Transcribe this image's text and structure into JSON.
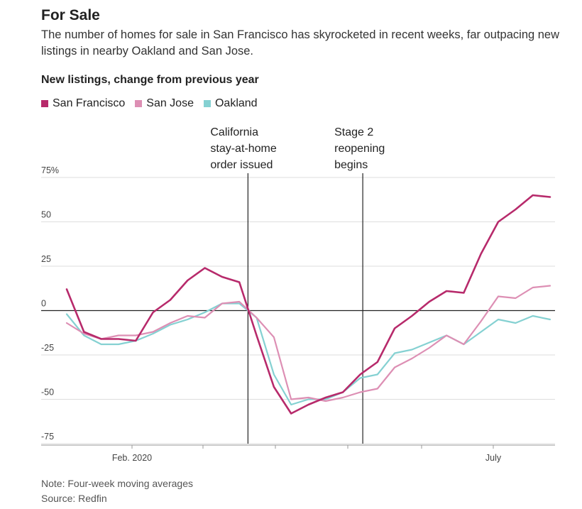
{
  "header": {
    "title": "For Sale",
    "dek": "The number of homes for sale in San Francisco has skyrocketed in recent weeks, far outpacing new listings in nearby Oakland and San Jose."
  },
  "chart_data": {
    "type": "line",
    "title": "New listings, change from previous year",
    "ylabel": "",
    "xlabel": "",
    "ylim": [
      -75,
      75
    ],
    "yticks": [
      75,
      50,
      25,
      0,
      -25,
      -50,
      -75
    ],
    "ytick_labels": [
      "75%",
      "50",
      "25",
      "0",
      "-25",
      "-50",
      "-75"
    ],
    "xtick_labels": [
      "Feb. 2020",
      "July"
    ],
    "grid": true,
    "legend_placement": "top-left",
    "x": [
      0,
      1,
      2,
      3,
      4,
      5,
      6,
      7,
      8,
      9,
      10,
      11,
      12,
      13,
      14,
      15,
      16,
      17,
      18,
      19,
      20,
      21,
      22,
      23,
      24,
      25,
      26,
      27,
      28
    ],
    "series": [
      {
        "name": "San Francisco",
        "color": "#b72a6b",
        "values": [
          12,
          -12,
          -16,
          -16,
          -17,
          -1,
          6,
          17,
          24,
          19,
          16,
          -14,
          -43,
          -58,
          -53,
          -49,
          -46,
          -36,
          -29,
          -10,
          -3,
          5,
          11,
          10,
          32,
          50,
          57,
          65,
          64
        ]
      },
      {
        "name": "San Jose",
        "color": "#dd8fb4",
        "values": [
          -7,
          -13,
          -16,
          -14,
          -14,
          -12,
          -7,
          -3,
          -4,
          4,
          5,
          -4,
          -15,
          -50,
          -49,
          -51,
          -49,
          -46,
          -44,
          -32,
          -27,
          -21,
          -14,
          -19,
          -6,
          8,
          7,
          13,
          14
        ]
      },
      {
        "name": "Oakland",
        "color": "#85d1d2",
        "values": [
          -2,
          -14,
          -19,
          -19,
          -17,
          -13,
          -8,
          -5,
          -1,
          4,
          4,
          -4,
          -36,
          -53,
          -50,
          -50,
          -46,
          -38,
          -36,
          -24,
          -22,
          -18,
          -14,
          -19,
          -12,
          -5,
          -7,
          -3,
          -5
        ]
      }
    ],
    "annotations": [
      {
        "x": 10.5,
        "lines": [
          "California",
          "stay-at-home",
          "order issued"
        ]
      },
      {
        "x": 17.15,
        "lines": [
          "Stage 2",
          "reopening",
          "begins"
        ]
      }
    ]
  },
  "footer": {
    "note": "Note: Four-week moving averages",
    "source": "Source: Redfin"
  }
}
